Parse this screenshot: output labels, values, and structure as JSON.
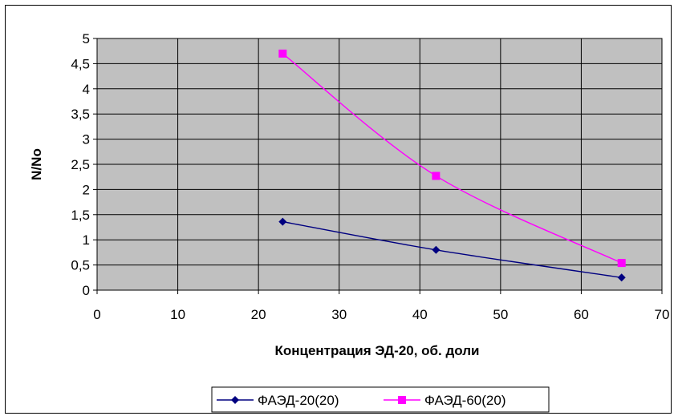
{
  "chart_data": {
    "type": "line",
    "title": "",
    "xlabel": "Концентрация ЭД-20, об. доли",
    "ylabel": "N/No",
    "xlim": [
      0,
      70
    ],
    "ylim": [
      0,
      5
    ],
    "x_ticks": [
      0,
      10,
      20,
      30,
      40,
      50,
      60,
      70
    ],
    "x_tick_labels": [
      "0",
      "10",
      "20",
      "30",
      "40",
      "50",
      "60",
      "70"
    ],
    "y_ticks": [
      0,
      0.5,
      1,
      1.5,
      2,
      2.5,
      3,
      3.5,
      4,
      4.5,
      5
    ],
    "y_tick_labels": [
      "0",
      "0,5",
      "1",
      "1,5",
      "2",
      "2,5",
      "3",
      "3,5",
      "4",
      "4,5",
      "5"
    ],
    "grid": true,
    "plot_background": "#c0c0c0",
    "legend_position": "bottom",
    "series": [
      {
        "name": "ФАЭД-20(20)",
        "color": "#000080",
        "marker": "diamond",
        "x": [
          23,
          42,
          65
        ],
        "y": [
          1.36,
          0.8,
          0.25
        ]
      },
      {
        "name": "ФАЭД-60(20)",
        "color": "#ff00ff",
        "marker": "square",
        "x": [
          23,
          42,
          65
        ],
        "y": [
          4.7,
          2.27,
          0.54
        ]
      }
    ]
  }
}
